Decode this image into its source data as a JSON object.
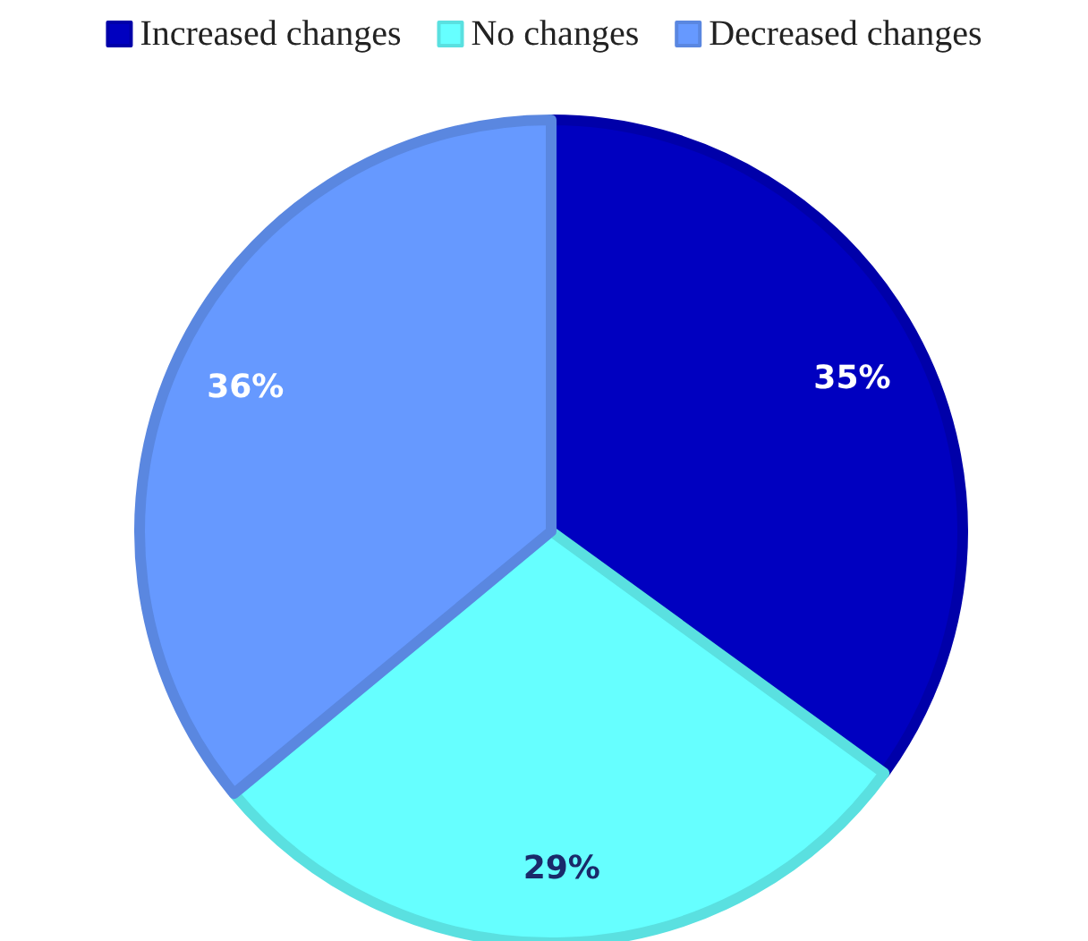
{
  "chart_data": {
    "type": "pie",
    "categories": [
      "Increased changes",
      "No changes",
      "Decreased changes"
    ],
    "values": [
      35,
      29,
      36
    ],
    "colors": [
      "#0000c0",
      "#66ffff",
      "#6699ff"
    ],
    "value_labels": [
      "35%",
      "29%",
      "36%"
    ],
    "legend": "top"
  }
}
